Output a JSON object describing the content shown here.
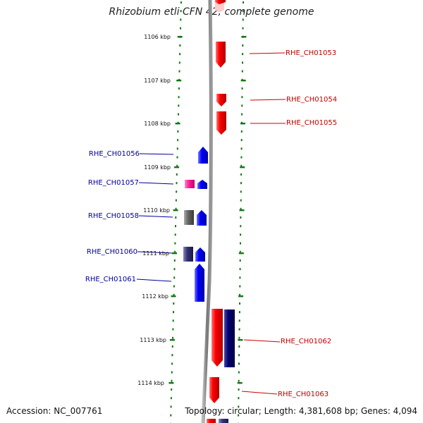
{
  "title": "Rhizobium etli CFN 42, complete genome",
  "footer": {
    "accession": "Accession: NC_007761",
    "topology": "Topology: circular; Length: 4,381,608 bp; Genes: 4,094"
  },
  "colors": {
    "forward_gene": "#ff0000",
    "reverse_gene": "#0000ff",
    "pink_gene": "#ff3399",
    "gray_gene": "#666666",
    "slate_gene": "#333377",
    "navy_gene": "#00006e",
    "backbone": "#888888",
    "tick_major": "#117711",
    "right_label": "#bb0000",
    "left_label": "#000099"
  },
  "scale_ticks": [
    {
      "label": "1106 kbp"
    },
    {
      "label": "1107 kbp"
    },
    {
      "label": "1108 kbp"
    },
    {
      "label": "1109 kbp"
    },
    {
      "label": "1110 kbp"
    },
    {
      "label": "1111 kbp"
    },
    {
      "label": "1112 kbp"
    },
    {
      "label": "1113 kbp"
    },
    {
      "label": "1114 kbp"
    }
  ],
  "gene_labels_right": [
    {
      "id": "RHE_CH01053"
    },
    {
      "id": "RHE_CH01054"
    },
    {
      "id": "RHE_CH01055"
    },
    {
      "id": "RHE_CH01062"
    },
    {
      "id": "RHE_CH01063"
    }
  ],
  "gene_labels_left": [
    {
      "id": "RHE_CH01056"
    },
    {
      "id": "RHE_CH01057"
    },
    {
      "id": "RHE_CH01058"
    },
    {
      "id": "RHE_CH01060"
    },
    {
      "id": "RHE_CH01061"
    }
  ]
}
